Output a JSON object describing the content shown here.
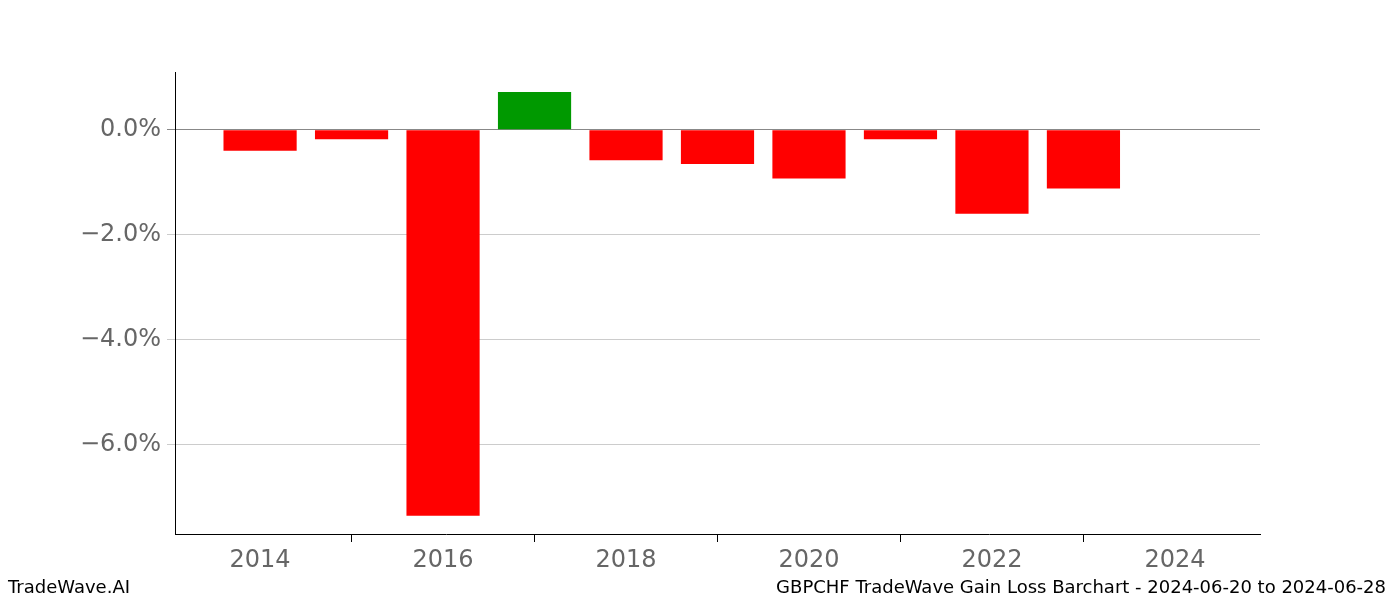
{
  "chart_data": {
    "type": "bar",
    "title": "GBPCHF TradeWave Gain Loss Barchart - 2024-06-20 to 2024-06-28",
    "annotations": [
      "TradeWave.AI"
    ],
    "x": [
      2014,
      2015,
      2016,
      2017,
      2018,
      2019,
      2020,
      2021,
      2022,
      2023
    ],
    "values": [
      -0.4,
      -0.18,
      -7.35,
      0.72,
      -0.58,
      -0.65,
      -0.93,
      -0.18,
      -1.6,
      -1.12
    ],
    "colors": [
      "#ff0000",
      "#ff0000",
      "#ff0000",
      "#009900",
      "#ff0000",
      "#ff0000",
      "#ff0000",
      "#ff0000",
      "#ff0000",
      "#ff0000"
    ],
    "xlim": [
      2013.07,
      2024.93
    ],
    "xticks": [
      2014,
      2016,
      2018,
      2020,
      2022,
      2024
    ],
    "ylim": [
      -7.7,
      1.1
    ],
    "yticks": [
      {
        "value": -6,
        "label": "−6.0%"
      },
      {
        "value": -4,
        "label": "−4.0%"
      },
      {
        "value": -2,
        "label": "−2.0%"
      },
      {
        "value": 0,
        "label": "0.0%"
      }
    ],
    "grid": true
  }
}
